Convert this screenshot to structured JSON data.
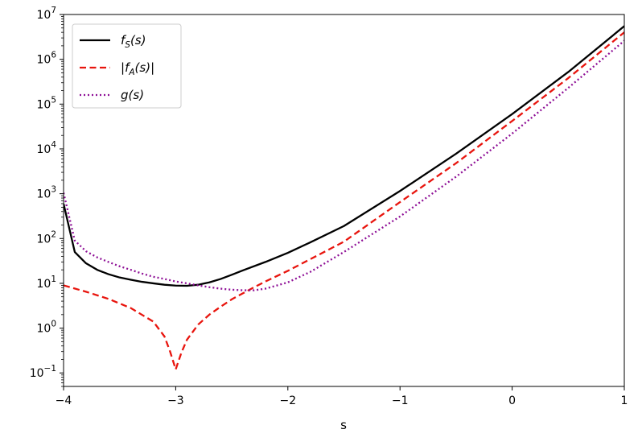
{
  "chart_data": {
    "type": "line",
    "title": "",
    "xlabel": "s",
    "ylabel": "",
    "xscale": "linear",
    "yscale": "log",
    "xlim": [
      -4,
      1
    ],
    "ylim": [
      0.05,
      10000000
    ],
    "xticks": [
      {
        "value": -4,
        "label": "−4"
      },
      {
        "value": -3,
        "label": "−3"
      },
      {
        "value": -2,
        "label": "−2"
      },
      {
        "value": -1,
        "label": "−1"
      },
      {
        "value": 0,
        "label": "0"
      },
      {
        "value": 1,
        "label": "1"
      }
    ],
    "yticks": [
      {
        "value": 0.1,
        "base": "10",
        "exp": "−1"
      },
      {
        "value": 1,
        "base": "10",
        "exp": "0"
      },
      {
        "value": 10,
        "base": "10",
        "exp": "1"
      },
      {
        "value": 100,
        "base": "10",
        "exp": "2"
      },
      {
        "value": 1000,
        "base": "10",
        "exp": "3"
      },
      {
        "value": 10000,
        "base": "10",
        "exp": "4"
      },
      {
        "value": 100000,
        "base": "10",
        "exp": "5"
      },
      {
        "value": 1000000,
        "base": "10",
        "exp": "6"
      },
      {
        "value": 10000000,
        "base": "10",
        "exp": "7"
      }
    ],
    "grid": false,
    "legend_position": "top-left",
    "series": [
      {
        "name": "f_S(s)",
        "legend": {
          "main": "f",
          "sub": "S",
          "rest": "(s)",
          "prefix": "",
          "suffix": ""
        },
        "color": "#000000",
        "style": "solid",
        "x": [
          -4.0,
          -3.9,
          -3.8,
          -3.7,
          -3.6,
          -3.5,
          -3.4,
          -3.3,
          -3.2,
          -3.1,
          -3.0,
          -2.9,
          -2.8,
          -2.7,
          -2.6,
          -2.5,
          -2.4,
          -2.2,
          -2.0,
          -1.8,
          -1.5,
          -1.0,
          -0.5,
          0.0,
          0.5,
          1.0
        ],
        "y": [
          600,
          50,
          28,
          20,
          16,
          13.5,
          12,
          10.8,
          10,
          9.3,
          8.9,
          8.8,
          9.3,
          10.5,
          12.5,
          15.5,
          19.5,
          30,
          48,
          82,
          190,
          1150,
          7800,
          60000,
          520000,
          5500000
        ]
      },
      {
        "name": "|f_A(s)|",
        "legend": {
          "main": "f",
          "sub": "A",
          "rest": "(s)",
          "prefix": "|",
          "suffix": "|"
        },
        "color": "#e8150e",
        "style": "dashed",
        "x": [
          -4.0,
          -3.8,
          -3.6,
          -3.4,
          -3.2,
          -3.1,
          -3.05,
          -3.0,
          -2.95,
          -2.9,
          -2.8,
          -2.7,
          -2.6,
          -2.5,
          -2.4,
          -2.3,
          -2.2,
          -2.0,
          -1.5,
          -1.0,
          -0.5,
          0.0,
          0.5,
          1.0
        ],
        "y": [
          9,
          6.5,
          4.5,
          2.8,
          1.4,
          0.65,
          0.3,
          0.12,
          0.28,
          0.55,
          1.2,
          2.0,
          3.0,
          4.4,
          6.0,
          8.2,
          11,
          19,
          85,
          650,
          4800,
          42000,
          380000,
          4000000
        ]
      },
      {
        "name": "g(s)",
        "legend": {
          "main": "g",
          "sub": "",
          "rest": "(s)",
          "prefix": "",
          "suffix": ""
        },
        "color": "#8e0f96",
        "style": "dotted",
        "x": [
          -4.0,
          -3.9,
          -3.8,
          -3.7,
          -3.6,
          -3.5,
          -3.4,
          -3.3,
          -3.2,
          -3.1,
          -3.0,
          -2.9,
          -2.8,
          -2.7,
          -2.6,
          -2.5,
          -2.4,
          -2.3,
          -2.2,
          -2.0,
          -1.8,
          -1.5,
          -1.0,
          -0.5,
          0.0,
          0.5,
          1.0
        ],
        "y": [
          1050,
          90,
          52,
          38,
          30,
          24,
          20,
          16.5,
          14,
          12.5,
          11,
          10,
          9,
          8.2,
          7.6,
          7.2,
          7.0,
          7.0,
          7.6,
          10.5,
          18,
          50,
          310,
          2400,
          22000,
          230000,
          2600000
        ]
      }
    ]
  }
}
